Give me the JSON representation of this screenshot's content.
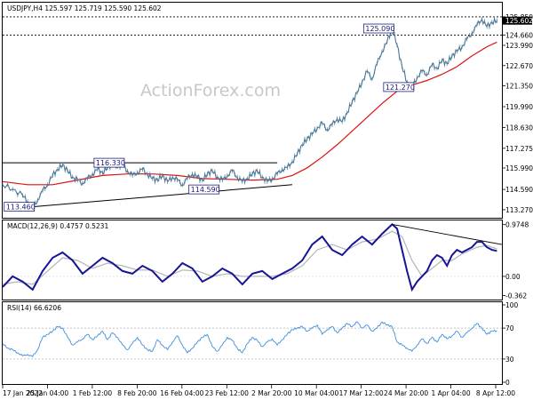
{
  "colors": {
    "price": "#4a7796",
    "ma": "#dd1111",
    "macd": "#151596",
    "signal": "#b4b4b4",
    "rsi": "#3f8ee0",
    "annotation_box": "#202080",
    "grid": "#b0b0b0"
  },
  "watermark": "ActionForex.com",
  "chart_data": [
    {
      "type": "line",
      "panel": "price",
      "header": "USDJPY,H4  125.597 125.719 125.590 125.602",
      "y_axis": {
        "range": [
          112.8,
          126.6
        ],
        "ticks": [
          "125.850",
          "125.602",
          "124.660",
          "123.990",
          "122.670",
          "121.350",
          "119.990",
          "118.630",
          "117.275",
          "115.990",
          "114.590",
          "113.270"
        ],
        "tick_values": [
          125.85,
          125.602,
          124.66,
          123.99,
          122.67,
          121.35,
          119.99,
          118.63,
          117.275,
          115.99,
          114.59,
          113.27
        ],
        "current_price_label": "125.602"
      },
      "x_axis": {
        "labels": [
          "17 Jan 2022",
          "25 Jan 04:00",
          "1 Feb 12:00",
          "8 Feb 20:00",
          "16 Feb 04:00",
          "23 Feb 12:00",
          "2 Mar 20:00",
          "10 Mar 04:00",
          "17 Mar 12:00",
          "24 Mar 20:00",
          "1 Apr 04:00",
          "8 Apr 12:00"
        ],
        "range": [
          0,
          100
        ]
      },
      "price_series": [
        [
          0,
          114.9
        ],
        [
          2,
          114.6
        ],
        [
          4,
          114.2
        ],
        [
          5,
          113.8
        ],
        [
          6,
          113.46
        ],
        [
          7,
          113.9
        ],
        [
          8,
          114.5
        ],
        [
          9,
          114.9
        ],
        [
          10,
          115.5
        ],
        [
          11,
          115.9
        ],
        [
          12,
          116.2
        ],
        [
          13,
          115.8
        ],
        [
          14,
          115.4
        ],
        [
          15,
          115.2
        ],
        [
          16,
          115.0
        ],
        [
          17,
          115.3
        ],
        [
          18,
          115.6
        ],
        [
          19,
          115.9
        ],
        [
          20,
          115.7
        ],
        [
          21,
          116.0
        ],
        [
          22,
          116.3
        ],
        [
          23,
          116.1
        ],
        [
          24,
          116.2
        ],
        [
          25,
          115.8
        ],
        [
          26,
          115.5
        ],
        [
          27,
          115.7
        ],
        [
          28,
          115.9
        ],
        [
          29,
          115.6
        ],
        [
          30,
          115.3
        ],
        [
          31,
          115.2
        ],
        [
          32,
          115.5
        ],
        [
          33,
          115.1
        ],
        [
          34,
          115.4
        ],
        [
          35,
          115.2
        ],
        [
          36,
          114.9
        ],
        [
          37,
          115.3
        ],
        [
          38,
          115.6
        ],
        [
          39,
          115.4
        ],
        [
          40,
          115.2
        ],
        [
          41,
          115.6
        ],
        [
          42,
          115.8
        ],
        [
          43,
          115.4
        ],
        [
          44,
          115.2
        ],
        [
          45,
          115.5
        ],
        [
          46,
          115.8
        ],
        [
          47,
          115.4
        ],
        [
          48,
          115.1
        ],
        [
          49,
          115.3
        ],
        [
          50,
          115.6
        ],
        [
          51,
          115.8
        ],
        [
          52,
          115.4
        ],
        [
          53,
          115.1
        ],
        [
          54,
          115.3
        ],
        [
          55,
          115.6
        ],
        [
          56,
          115.9
        ],
        [
          57,
          116.0
        ],
        [
          58,
          116.4
        ],
        [
          59,
          116.9
        ],
        [
          60,
          117.5
        ],
        [
          61,
          117.9
        ],
        [
          62,
          118.2
        ],
        [
          63,
          118.6
        ],
        [
          64,
          118.9
        ],
        [
          65,
          118.5
        ],
        [
          66,
          118.8
        ],
        [
          67,
          119.2
        ],
        [
          68,
          119.0
        ],
        [
          69,
          119.6
        ],
        [
          70,
          120.3
        ],
        [
          71,
          120.9
        ],
        [
          72,
          121.6
        ],
        [
          73,
          122.3
        ],
        [
          74,
          121.8
        ],
        [
          75,
          122.8
        ],
        [
          76,
          123.6
        ],
        [
          77,
          124.2
        ],
        [
          78,
          125.09
        ],
        [
          79,
          124.0
        ],
        [
          80,
          122.6
        ],
        [
          81,
          121.6
        ],
        [
          82,
          121.27
        ],
        [
          83,
          121.9
        ],
        [
          84,
          122.3
        ],
        [
          85,
          122.1
        ],
        [
          86,
          122.7
        ],
        [
          87,
          122.5
        ],
        [
          88,
          123.0
        ],
        [
          89,
          122.8
        ],
        [
          90,
          123.3
        ],
        [
          91,
          123.6
        ],
        [
          92,
          123.9
        ],
        [
          93,
          124.4
        ],
        [
          94,
          124.8
        ],
        [
          95,
          125.3
        ],
        [
          96,
          125.7
        ],
        [
          97,
          125.2
        ],
        [
          98,
          125.5
        ],
        [
          99,
          125.6
        ]
      ],
      "ma_series": [
        [
          0,
          115.1
        ],
        [
          5,
          114.9
        ],
        [
          10,
          114.9
        ],
        [
          15,
          115.2
        ],
        [
          20,
          115.5
        ],
        [
          25,
          115.6
        ],
        [
          30,
          115.6
        ],
        [
          35,
          115.5
        ],
        [
          40,
          115.3
        ],
        [
          45,
          115.25
        ],
        [
          50,
          115.2
        ],
        [
          55,
          115.25
        ],
        [
          58,
          115.5
        ],
        [
          61,
          116.0
        ],
        [
          64,
          116.7
        ],
        [
          67,
          117.5
        ],
        [
          70,
          118.4
        ],
        [
          73,
          119.3
        ],
        [
          76,
          120.2
        ],
        [
          79,
          121.0
        ],
        [
          82,
          121.4
        ],
        [
          85,
          121.7
        ],
        [
          88,
          122.1
        ],
        [
          91,
          122.6
        ],
        [
          94,
          123.3
        ],
        [
          97,
          123.9
        ],
        [
          99,
          124.2
        ]
      ],
      "horizontal_levels": [
        {
          "value": 125.85,
          "from": 0,
          "to": 100
        },
        {
          "value": 124.66,
          "from": 0,
          "to": 100
        }
      ],
      "resistance_line": {
        "from": [
          0,
          116.33
        ],
        "to": [
          55,
          116.33
        ]
      },
      "support_trendline": {
        "from": [
          6,
          113.46
        ],
        "to": [
          58,
          114.9
        ]
      },
      "annotations": [
        {
          "text": "125.090",
          "x": 78,
          "y": 125.09,
          "side": "left"
        },
        {
          "text": "121.270",
          "x": 82,
          "y": 121.27,
          "side": "left"
        },
        {
          "text": "116.330",
          "x": 24,
          "y": 116.33,
          "side": "left"
        },
        {
          "text": "114.590",
          "x": 43,
          "y": 114.59,
          "side": "left"
        },
        {
          "text": "113.460",
          "x": 6,
          "y": 113.46,
          "side": "left"
        }
      ]
    },
    {
      "type": "line",
      "panel": "macd",
      "header": "MACD(12,26,9)  0.4757  0.5231",
      "y_axis": {
        "range": [
          -0.42,
          1.02
        ],
        "ticks": [
          "0.9748",
          "0.00",
          "-0.362"
        ],
        "tick_values": [
          0.9748,
          0.0,
          -0.362
        ]
      },
      "macd_series": [
        [
          0,
          -0.2
        ],
        [
          2,
          0.0
        ],
        [
          4,
          -0.1
        ],
        [
          6,
          -0.25
        ],
        [
          8,
          0.1
        ],
        [
          10,
          0.35
        ],
        [
          12,
          0.45
        ],
        [
          14,
          0.3
        ],
        [
          16,
          0.05
        ],
        [
          18,
          0.2
        ],
        [
          20,
          0.35
        ],
        [
          22,
          0.25
        ],
        [
          24,
          0.1
        ],
        [
          26,
          0.05
        ],
        [
          28,
          0.2
        ],
        [
          30,
          0.1
        ],
        [
          32,
          -0.1
        ],
        [
          34,
          0.05
        ],
        [
          36,
          0.25
        ],
        [
          38,
          0.15
        ],
        [
          40,
          -0.1
        ],
        [
          42,
          0.0
        ],
        [
          44,
          0.15
        ],
        [
          46,
          0.05
        ],
        [
          48,
          -0.15
        ],
        [
          50,
          0.05
        ],
        [
          52,
          0.1
        ],
        [
          54,
          -0.05
        ],
        [
          56,
          0.05
        ],
        [
          58,
          0.15
        ],
        [
          60,
          0.3
        ],
        [
          62,
          0.6
        ],
        [
          64,
          0.75
        ],
        [
          66,
          0.5
        ],
        [
          68,
          0.4
        ],
        [
          70,
          0.6
        ],
        [
          72,
          0.75
        ],
        [
          74,
          0.6
        ],
        [
          76,
          0.8
        ],
        [
          78,
          0.98
        ],
        [
          79,
          0.9
        ],
        [
          80,
          0.5
        ],
        [
          81,
          0.1
        ],
        [
          82,
          -0.25
        ],
        [
          83,
          -0.1
        ],
        [
          84,
          0.0
        ],
        [
          85,
          0.1
        ],
        [
          86,
          0.3
        ],
        [
          87,
          0.4
        ],
        [
          88,
          0.35
        ],
        [
          89,
          0.2
        ],
        [
          90,
          0.4
        ],
        [
          91,
          0.5
        ],
        [
          92,
          0.45
        ],
        [
          94,
          0.55
        ],
        [
          95,
          0.65
        ],
        [
          96,
          0.65
        ],
        [
          97,
          0.55
        ],
        [
          98,
          0.5
        ],
        [
          99,
          0.48
        ]
      ],
      "signal_series": [
        [
          0,
          -0.15
        ],
        [
          3,
          -0.1
        ],
        [
          6,
          -0.15
        ],
        [
          9,
          0.1
        ],
        [
          12,
          0.35
        ],
        [
          15,
          0.3
        ],
        [
          18,
          0.15
        ],
        [
          21,
          0.25
        ],
        [
          24,
          0.2
        ],
        [
          27,
          0.12
        ],
        [
          30,
          0.12
        ],
        [
          33,
          0.0
        ],
        [
          36,
          0.12
        ],
        [
          39,
          0.1
        ],
        [
          42,
          0.0
        ],
        [
          45,
          0.05
        ],
        [
          48,
          0.0
        ],
        [
          51,
          0.0
        ],
        [
          54,
          0.0
        ],
        [
          57,
          0.05
        ],
        [
          60,
          0.2
        ],
        [
          63,
          0.5
        ],
        [
          66,
          0.6
        ],
        [
          69,
          0.5
        ],
        [
          72,
          0.65
        ],
        [
          75,
          0.7
        ],
        [
          78,
          0.85
        ],
        [
          80,
          0.75
        ],
        [
          82,
          0.3
        ],
        [
          84,
          0.0
        ],
        [
          86,
          0.15
        ],
        [
          88,
          0.3
        ],
        [
          90,
          0.3
        ],
        [
          92,
          0.42
        ],
        [
          95,
          0.55
        ],
        [
          97,
          0.58
        ],
        [
          99,
          0.52
        ]
      ],
      "divergence_line": {
        "from": [
          78,
          0.98
        ],
        "to": [
          100,
          0.6
        ]
      }
    },
    {
      "type": "line",
      "panel": "rsi",
      "header": "RSI(14)  66.6206",
      "y_axis": {
        "range": [
          0,
          100
        ],
        "ticks": [
          "100",
          "70",
          "30",
          "0"
        ],
        "tick_values": [
          100,
          70,
          30,
          0
        ]
      },
      "levels": [
        70,
        30
      ],
      "rsi_series": [
        [
          0,
          50
        ],
        [
          1,
          44
        ],
        [
          2,
          42
        ],
        [
          3,
          38
        ],
        [
          4,
          34
        ],
        [
          5,
          36
        ],
        [
          6,
          33
        ],
        [
          7,
          42
        ],
        [
          8,
          58
        ],
        [
          9,
          62
        ],
        [
          10,
          66
        ],
        [
          11,
          72
        ],
        [
          12,
          70
        ],
        [
          13,
          58
        ],
        [
          14,
          48
        ],
        [
          15,
          52
        ],
        [
          16,
          56
        ],
        [
          17,
          62
        ],
        [
          18,
          55
        ],
        [
          19,
          60
        ],
        [
          20,
          66
        ],
        [
          21,
          55
        ],
        [
          22,
          64
        ],
        [
          23,
          58
        ],
        [
          24,
          48
        ],
        [
          25,
          42
        ],
        [
          26,
          50
        ],
        [
          27,
          58
        ],
        [
          28,
          48
        ],
        [
          29,
          42
        ],
        [
          30,
          40
        ],
        [
          31,
          55
        ],
        [
          32,
          48
        ],
        [
          33,
          42
        ],
        [
          34,
          52
        ],
        [
          35,
          60
        ],
        [
          36,
          48
        ],
        [
          37,
          38
        ],
        [
          38,
          44
        ],
        [
          39,
          52
        ],
        [
          40,
          58
        ],
        [
          41,
          62
        ],
        [
          42,
          46
        ],
        [
          43,
          40
        ],
        [
          44,
          48
        ],
        [
          45,
          58
        ],
        [
          46,
          54
        ],
        [
          47,
          44
        ],
        [
          48,
          38
        ],
        [
          49,
          50
        ],
        [
          50,
          58
        ],
        [
          51,
          54
        ],
        [
          52,
          46
        ],
        [
          53,
          52
        ],
        [
          54,
          56
        ],
        [
          55,
          48
        ],
        [
          56,
          55
        ],
        [
          57,
          62
        ],
        [
          58,
          68
        ],
        [
          59,
          70
        ],
        [
          60,
          72
        ],
        [
          61,
          66
        ],
        [
          62,
          70
        ],
        [
          63,
          74
        ],
        [
          64,
          62
        ],
        [
          65,
          68
        ],
        [
          66,
          72
        ],
        [
          67,
          64
        ],
        [
          68,
          70
        ],
        [
          69,
          76
        ],
        [
          70,
          72
        ],
        [
          71,
          78
        ],
        [
          72,
          70
        ],
        [
          73,
          74
        ],
        [
          74,
          66
        ],
        [
          75,
          70
        ],
        [
          76,
          78
        ],
        [
          77,
          74
        ],
        [
          78,
          72
        ],
        [
          79,
          52
        ],
        [
          80,
          48
        ],
        [
          81,
          44
        ],
        [
          82,
          40
        ],
        [
          83,
          48
        ],
        [
          84,
          56
        ],
        [
          85,
          50
        ],
        [
          86,
          58
        ],
        [
          87,
          52
        ],
        [
          88,
          62
        ],
        [
          89,
          56
        ],
        [
          90,
          60
        ],
        [
          91,
          66
        ],
        [
          92,
          58
        ],
        [
          93,
          64
        ],
        [
          94,
          70
        ],
        [
          95,
          76
        ],
        [
          96,
          70
        ],
        [
          97,
          62
        ],
        [
          98,
          66
        ],
        [
          99,
          66.6
        ]
      ]
    }
  ]
}
